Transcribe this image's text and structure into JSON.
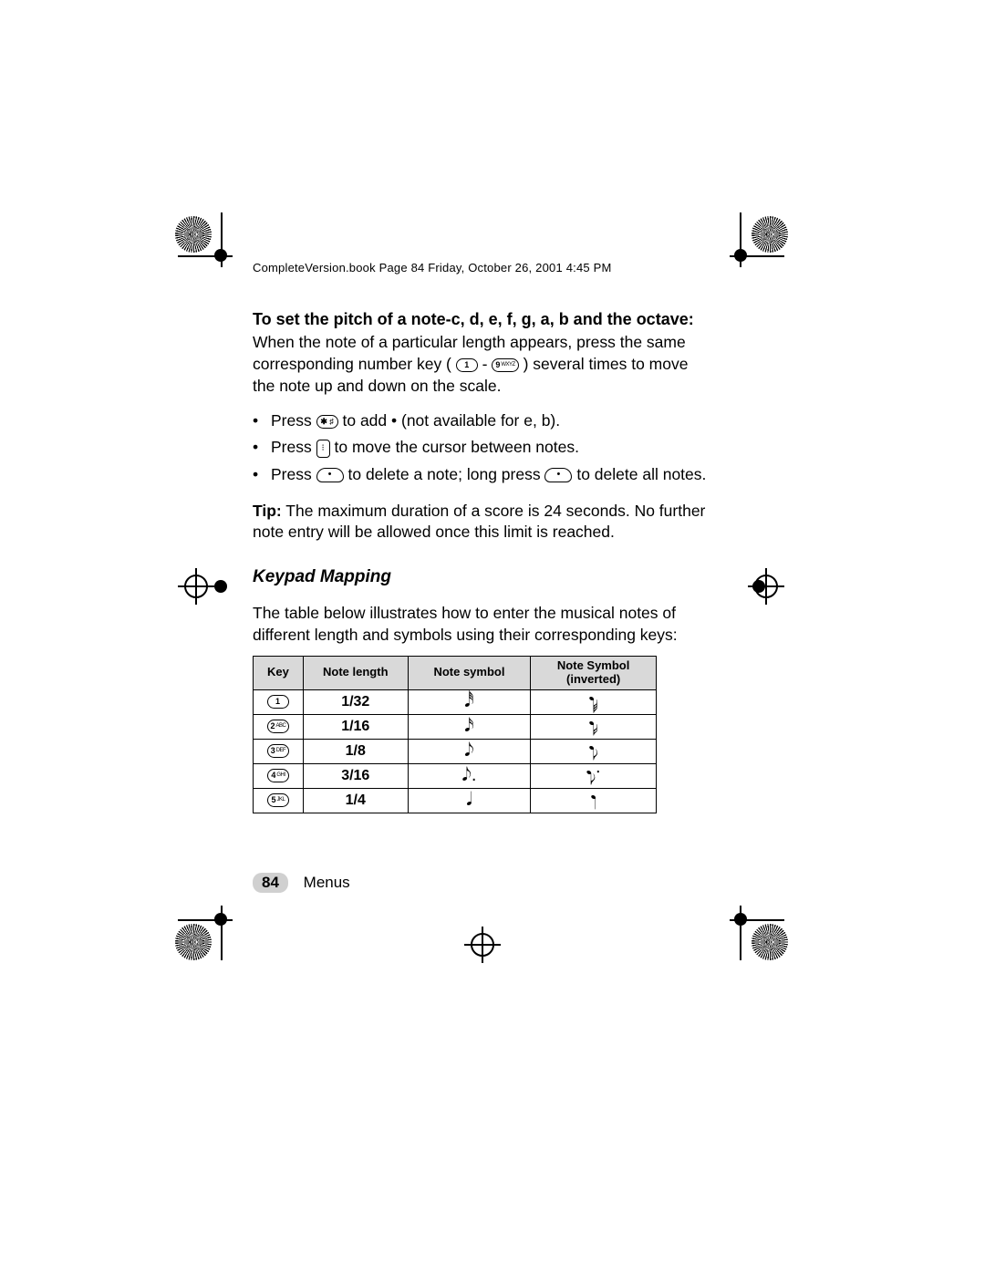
{
  "header": "CompleteVersion.book  Page 84  Friday, October 26, 2001  4:45 PM",
  "title": "To set the pitch of a note-c, d, e, f, g, a, b and the octave:",
  "intro1": "When the note of a particular length appears, press the same corresponding number key (",
  "intro_key_from": "1",
  "intro_sep": " - ",
  "intro_key_to": "9",
  "intro_key_to_sub": "WXYZ",
  "intro2": ") several times to move the note up and down on the scale.",
  "bullets": {
    "b1_a": "Press ",
    "b1_key": "✱ ♯",
    "b1_b": " to add • (not available for e, b).",
    "b2_a": "Press ",
    "b2_b": " to move the cursor between notes.",
    "b3_a": "Press ",
    "b3_b": " to delete a note; long press ",
    "b3_c": " to delete all notes."
  },
  "tip_label": "Tip:",
  "tip_text": " The maximum duration of a score is 24 seconds. No further note entry will be allowed once this limit is reached.",
  "subhead": "Keypad Mapping",
  "table_intro": "The table below illustrates how to enter the musical notes of different length and symbols using their corresponding keys:",
  "table": {
    "headers": {
      "key": "Key",
      "len": "Note length",
      "sym": "Note symbol",
      "inv1": "Note Symbol",
      "inv2": "(inverted)"
    },
    "rows": [
      {
        "key": "1",
        "keysub": "",
        "len": "1/32",
        "sym": "𝅘𝅥𝅰",
        "inv": "𝅘𝅥𝅰"
      },
      {
        "key": "2",
        "keysub": "ABC",
        "len": "1/16",
        "sym": "𝅘𝅥𝅯",
        "inv": "𝅘𝅥𝅯"
      },
      {
        "key": "3",
        "keysub": "DEF",
        "len": "1/8",
        "sym": "𝅘𝅥𝅮",
        "inv": "𝅘𝅥𝅮"
      },
      {
        "key": "4",
        "keysub": "GHI",
        "len": "3/16",
        "sym": "𝅘𝅥𝅮.",
        "inv": "𝅘𝅥𝅮."
      },
      {
        "key": "5",
        "keysub": "JKL",
        "len": "1/4",
        "sym": "𝅘𝅥",
        "inv": "𝅘𝅥"
      }
    ]
  },
  "footer": {
    "pageno": "84",
    "section": "Menus"
  },
  "colors": {
    "thead_bg": "#d9d9d9",
    "text": "#000000",
    "page_bg": "#ffffff",
    "footer_bg": "#d0d0d0"
  }
}
